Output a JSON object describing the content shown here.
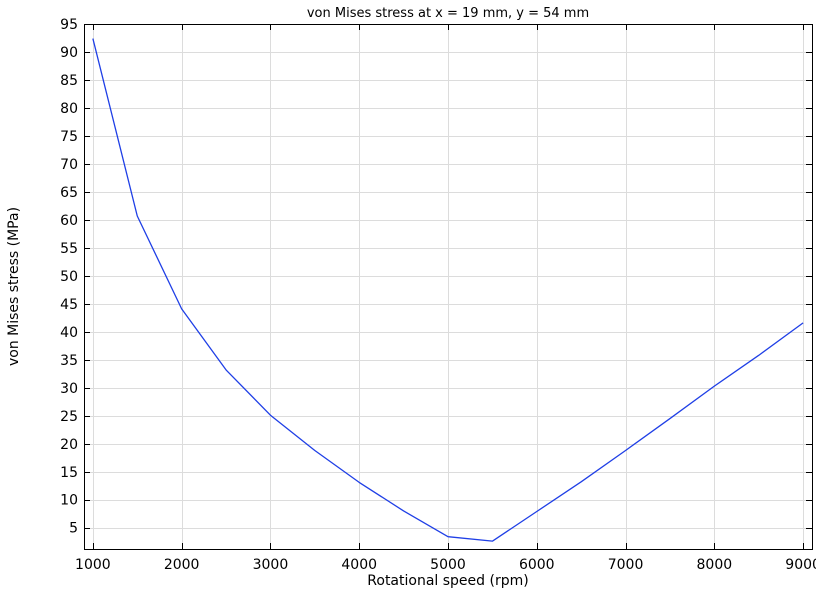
{
  "chart_data": {
    "type": "line",
    "title": "von Mises stress at x = 19 mm, y = 54 mm",
    "xlabel": "Rotational speed (rpm)",
    "ylabel": "von Mises stress (MPa)",
    "xlim": [
      900,
      9100
    ],
    "ylim": [
      1.2,
      95
    ],
    "xticks": [
      1000,
      2000,
      3000,
      4000,
      5000,
      6000,
      7000,
      8000,
      9000
    ],
    "yticks": [
      5,
      10,
      15,
      20,
      25,
      30,
      35,
      40,
      45,
      50,
      55,
      60,
      65,
      70,
      75,
      80,
      85,
      90,
      95
    ],
    "grid": true,
    "series": [
      {
        "color": "#1f3fe6",
        "x": [
          1000,
          1500,
          2000,
          2500,
          3000,
          3500,
          4000,
          4500,
          5000,
          5500,
          6000,
          6500,
          7000,
          7500,
          8000,
          8500,
          9000
        ],
        "y": [
          92.4,
          60.7,
          44.1,
          33.2,
          25.1,
          18.8,
          13.1,
          8.0,
          3.4,
          2.6,
          7.9,
          13.2,
          18.8,
          24.5,
          30.3,
          35.8,
          41.6
        ]
      }
    ]
  }
}
